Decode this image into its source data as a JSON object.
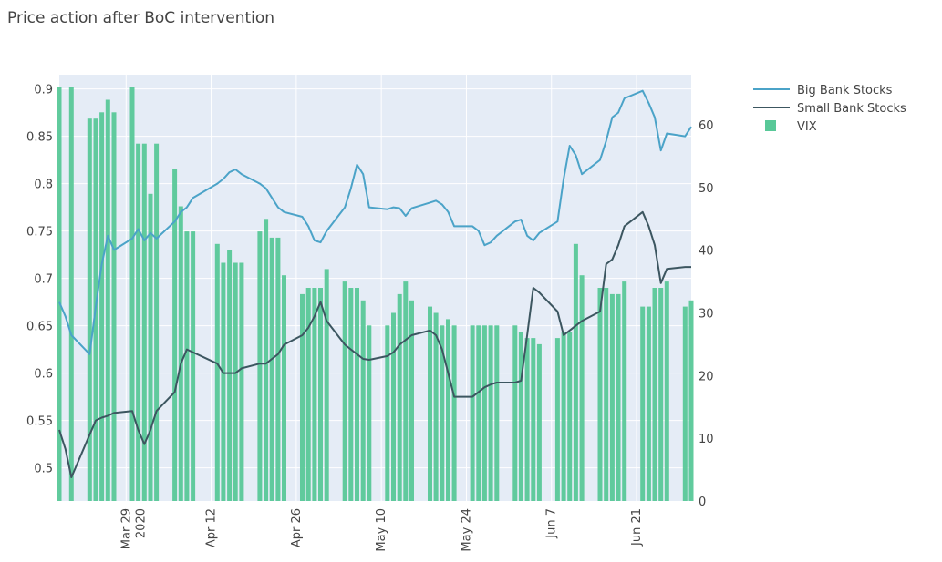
{
  "chart_data": {
    "type": "line",
    "title": "Price action after BoC intervention",
    "xlabel": "",
    "ylabel": "",
    "x_range": [
      "2020-03-18",
      "2020-06-30"
    ],
    "x_ticks": [
      {
        "date": "2020-03-29",
        "label": "Mar 29",
        "label2": "2020"
      },
      {
        "date": "2020-04-12",
        "label": "Apr 12"
      },
      {
        "date": "2020-04-26",
        "label": "Apr 26"
      },
      {
        "date": "2020-05-10",
        "label": "May 10"
      },
      {
        "date": "2020-05-24",
        "label": "May 24"
      },
      {
        "date": "2020-06-07",
        "label": "Jun 7"
      },
      {
        "date": "2020-06-21",
        "label": "Jun 21"
      }
    ],
    "y_left": {
      "range": [
        0.465,
        0.915
      ],
      "ticks": [
        0.5,
        0.55,
        0.6,
        0.65,
        0.7,
        0.75,
        0.8,
        0.85,
        0.9
      ],
      "tick_labels": [
        "0.5",
        "0.55",
        "0.6",
        "0.65",
        "0.7",
        "0.75",
        "0.8",
        "0.85",
        "0.9"
      ]
    },
    "y_right": {
      "range": [
        0,
        68
      ],
      "ticks": [
        0,
        10,
        20,
        30,
        40,
        50,
        60
      ],
      "tick_labels": [
        "0",
        "10",
        "20",
        "30",
        "40",
        "50",
        "60"
      ]
    },
    "grid": true,
    "legend_position": "top-right",
    "colors": {
      "big": "#4ba3c8",
      "small": "#3c5660",
      "vix": "#58c898",
      "plot_bg": "#e5ecf6",
      "grid": "#ffffff",
      "text": "#444444"
    },
    "series": [
      {
        "name": "Big Bank Stocks",
        "type": "line",
        "axis": "left",
        "points": [
          [
            "2020-03-18",
            0.675
          ],
          [
            "2020-03-19",
            0.66
          ],
          [
            "2020-03-20",
            0.64
          ],
          [
            "2020-03-23",
            0.62
          ],
          [
            "2020-03-24",
            0.67
          ],
          [
            "2020-03-25",
            0.715
          ],
          [
            "2020-03-26",
            0.745
          ],
          [
            "2020-03-27",
            0.73
          ],
          [
            "2020-03-30",
            0.742
          ],
          [
            "2020-03-31",
            0.752
          ],
          [
            "2020-04-01",
            0.74
          ],
          [
            "2020-04-02",
            0.748
          ],
          [
            "2020-04-03",
            0.742
          ],
          [
            "2020-04-06",
            0.76
          ],
          [
            "2020-04-07",
            0.77
          ],
          [
            "2020-04-08",
            0.775
          ],
          [
            "2020-04-09",
            0.785
          ],
          [
            "2020-04-13",
            0.8
          ],
          [
            "2020-04-14",
            0.805
          ],
          [
            "2020-04-15",
            0.812
          ],
          [
            "2020-04-16",
            0.815
          ],
          [
            "2020-04-17",
            0.81
          ],
          [
            "2020-04-20",
            0.8
          ],
          [
            "2020-04-21",
            0.795
          ],
          [
            "2020-04-22",
            0.785
          ],
          [
            "2020-04-23",
            0.775
          ],
          [
            "2020-04-24",
            0.77
          ],
          [
            "2020-04-27",
            0.765
          ],
          [
            "2020-04-28",
            0.755
          ],
          [
            "2020-04-29",
            0.74
          ],
          [
            "2020-04-30",
            0.738
          ],
          [
            "2020-05-01",
            0.75
          ],
          [
            "2020-05-04",
            0.775
          ],
          [
            "2020-05-05",
            0.795
          ],
          [
            "2020-05-06",
            0.82
          ],
          [
            "2020-05-07",
            0.81
          ],
          [
            "2020-05-08",
            0.775
          ],
          [
            "2020-05-11",
            0.773
          ],
          [
            "2020-05-12",
            0.775
          ],
          [
            "2020-05-13",
            0.774
          ],
          [
            "2020-05-14",
            0.766
          ],
          [
            "2020-05-15",
            0.774
          ],
          [
            "2020-05-18",
            0.78
          ],
          [
            "2020-05-19",
            0.782
          ],
          [
            "2020-05-20",
            0.778
          ],
          [
            "2020-05-21",
            0.77
          ],
          [
            "2020-05-22",
            0.755
          ],
          [
            "2020-05-25",
            0.755
          ],
          [
            "2020-05-26",
            0.75
          ],
          [
            "2020-05-27",
            0.735
          ],
          [
            "2020-05-28",
            0.738
          ],
          [
            "2020-05-29",
            0.745
          ],
          [
            "2020-06-01",
            0.76
          ],
          [
            "2020-06-02",
            0.762
          ],
          [
            "2020-06-03",
            0.745
          ],
          [
            "2020-06-04",
            0.74
          ],
          [
            "2020-06-05",
            0.748
          ],
          [
            "2020-06-08",
            0.76
          ],
          [
            "2020-06-09",
            0.805
          ],
          [
            "2020-06-10",
            0.84
          ],
          [
            "2020-06-11",
            0.83
          ],
          [
            "2020-06-12",
            0.81
          ],
          [
            "2020-06-15",
            0.825
          ],
          [
            "2020-06-16",
            0.845
          ],
          [
            "2020-06-17",
            0.87
          ],
          [
            "2020-06-18",
            0.875
          ],
          [
            "2020-06-19",
            0.89
          ],
          [
            "2020-06-22",
            0.898
          ],
          [
            "2020-06-23",
            0.885
          ],
          [
            "2020-06-24",
            0.87
          ],
          [
            "2020-06-25",
            0.835
          ],
          [
            "2020-06-26",
            0.853
          ],
          [
            "2020-06-29",
            0.85
          ],
          [
            "2020-06-30",
            0.86
          ]
        ]
      },
      {
        "name": "Small Bank Stocks",
        "type": "line",
        "axis": "left",
        "points": [
          [
            "2020-03-18",
            0.54
          ],
          [
            "2020-03-19",
            0.52
          ],
          [
            "2020-03-20",
            0.49
          ],
          [
            "2020-03-23",
            0.535
          ],
          [
            "2020-03-24",
            0.55
          ],
          [
            "2020-03-25",
            0.553
          ],
          [
            "2020-03-26",
            0.555
          ],
          [
            "2020-03-27",
            0.558
          ],
          [
            "2020-03-30",
            0.56
          ],
          [
            "2020-03-31",
            0.54
          ],
          [
            "2020-04-01",
            0.525
          ],
          [
            "2020-04-02",
            0.54
          ],
          [
            "2020-04-03",
            0.56
          ],
          [
            "2020-04-06",
            0.58
          ],
          [
            "2020-04-07",
            0.61
          ],
          [
            "2020-04-08",
            0.625
          ],
          [
            "2020-04-13",
            0.61
          ],
          [
            "2020-04-14",
            0.6
          ],
          [
            "2020-04-15",
            0.6
          ],
          [
            "2020-04-16",
            0.6
          ],
          [
            "2020-04-17",
            0.605
          ],
          [
            "2020-04-20",
            0.61
          ],
          [
            "2020-04-21",
            0.61
          ],
          [
            "2020-04-22",
            0.615
          ],
          [
            "2020-04-23",
            0.62
          ],
          [
            "2020-04-24",
            0.63
          ],
          [
            "2020-04-27",
            0.64
          ],
          [
            "2020-04-28",
            0.648
          ],
          [
            "2020-04-29",
            0.66
          ],
          [
            "2020-04-30",
            0.675
          ],
          [
            "2020-05-01",
            0.655
          ],
          [
            "2020-05-04",
            0.63
          ],
          [
            "2020-05-05",
            0.625
          ],
          [
            "2020-05-06",
            0.62
          ],
          [
            "2020-05-07",
            0.615
          ],
          [
            "2020-05-08",
            0.614
          ],
          [
            "2020-05-11",
            0.618
          ],
          [
            "2020-05-12",
            0.622
          ],
          [
            "2020-05-13",
            0.63
          ],
          [
            "2020-05-14",
            0.635
          ],
          [
            "2020-05-15",
            0.64
          ],
          [
            "2020-05-18",
            0.645
          ],
          [
            "2020-05-19",
            0.64
          ],
          [
            "2020-05-20",
            0.625
          ],
          [
            "2020-05-21",
            0.6
          ],
          [
            "2020-05-22",
            0.575
          ],
          [
            "2020-05-25",
            0.575
          ],
          [
            "2020-05-26",
            0.58
          ],
          [
            "2020-05-27",
            0.585
          ],
          [
            "2020-05-28",
            0.588
          ],
          [
            "2020-05-29",
            0.59
          ],
          [
            "2020-06-01",
            0.59
          ],
          [
            "2020-06-02",
            0.592
          ],
          [
            "2020-06-03",
            0.64
          ],
          [
            "2020-06-04",
            0.69
          ],
          [
            "2020-06-05",
            0.685
          ],
          [
            "2020-06-08",
            0.665
          ],
          [
            "2020-06-09",
            0.64
          ],
          [
            "2020-06-10",
            0.645
          ],
          [
            "2020-06-11",
            0.65
          ],
          [
            "2020-06-12",
            0.655
          ],
          [
            "2020-06-15",
            0.665
          ],
          [
            "2020-06-16",
            0.715
          ],
          [
            "2020-06-17",
            0.72
          ],
          [
            "2020-06-18",
            0.735
          ],
          [
            "2020-06-19",
            0.755
          ],
          [
            "2020-06-22",
            0.77
          ],
          [
            "2020-06-23",
            0.755
          ],
          [
            "2020-06-24",
            0.735
          ],
          [
            "2020-06-25",
            0.695
          ],
          [
            "2020-06-26",
            0.71
          ],
          [
            "2020-06-29",
            0.712
          ],
          [
            "2020-06-30",
            0.712
          ]
        ]
      },
      {
        "name": "VIX",
        "type": "bar",
        "axis": "right",
        "points": [
          [
            "2020-03-18",
            66
          ],
          [
            "2020-03-20",
            66
          ],
          [
            "2020-03-23",
            61
          ],
          [
            "2020-03-24",
            61
          ],
          [
            "2020-03-25",
            62
          ],
          [
            "2020-03-26",
            64
          ],
          [
            "2020-03-27",
            62
          ],
          [
            "2020-03-30",
            66
          ],
          [
            "2020-03-31",
            57
          ],
          [
            "2020-04-01",
            57
          ],
          [
            "2020-04-02",
            49
          ],
          [
            "2020-04-03",
            57
          ],
          [
            "2020-04-06",
            53
          ],
          [
            "2020-04-07",
            47
          ],
          [
            "2020-04-08",
            43
          ],
          [
            "2020-04-09",
            43
          ],
          [
            "2020-04-13",
            41
          ],
          [
            "2020-04-14",
            38
          ],
          [
            "2020-04-15",
            40
          ],
          [
            "2020-04-16",
            38
          ],
          [
            "2020-04-17",
            38
          ],
          [
            "2020-04-20",
            43
          ],
          [
            "2020-04-21",
            45
          ],
          [
            "2020-04-22",
            42
          ],
          [
            "2020-04-23",
            42
          ],
          [
            "2020-04-24",
            36
          ],
          [
            "2020-04-27",
            33
          ],
          [
            "2020-04-28",
            34
          ],
          [
            "2020-04-29",
            34
          ],
          [
            "2020-04-30",
            34
          ],
          [
            "2020-05-01",
            37
          ],
          [
            "2020-05-04",
            35
          ],
          [
            "2020-05-05",
            34
          ],
          [
            "2020-05-06",
            34
          ],
          [
            "2020-05-07",
            32
          ],
          [
            "2020-05-08",
            28
          ],
          [
            "2020-05-11",
            28
          ],
          [
            "2020-05-12",
            30
          ],
          [
            "2020-05-13",
            33
          ],
          [
            "2020-05-14",
            35
          ],
          [
            "2020-05-15",
            32
          ],
          [
            "2020-05-18",
            31
          ],
          [
            "2020-05-19",
            30
          ],
          [
            "2020-05-20",
            28
          ],
          [
            "2020-05-21",
            29
          ],
          [
            "2020-05-22",
            28
          ],
          [
            "2020-05-25",
            28
          ],
          [
            "2020-05-26",
            28
          ],
          [
            "2020-05-27",
            28
          ],
          [
            "2020-05-28",
            28
          ],
          [
            "2020-05-29",
            28
          ],
          [
            "2020-06-01",
            28
          ],
          [
            "2020-06-02",
            27
          ],
          [
            "2020-06-03",
            26
          ],
          [
            "2020-06-04",
            26
          ],
          [
            "2020-06-05",
            25
          ],
          [
            "2020-06-08",
            26
          ],
          [
            "2020-06-09",
            27
          ],
          [
            "2020-06-10",
            27
          ],
          [
            "2020-06-11",
            41
          ],
          [
            "2020-06-12",
            36
          ],
          [
            "2020-06-15",
            34
          ],
          [
            "2020-06-16",
            34
          ],
          [
            "2020-06-17",
            33
          ],
          [
            "2020-06-18",
            33
          ],
          [
            "2020-06-19",
            35
          ],
          [
            "2020-06-22",
            31
          ],
          [
            "2020-06-23",
            31
          ],
          [
            "2020-06-24",
            34
          ],
          [
            "2020-06-25",
            34
          ],
          [
            "2020-06-26",
            35
          ],
          [
            "2020-06-29",
            31
          ],
          [
            "2020-06-30",
            32
          ]
        ]
      }
    ]
  }
}
